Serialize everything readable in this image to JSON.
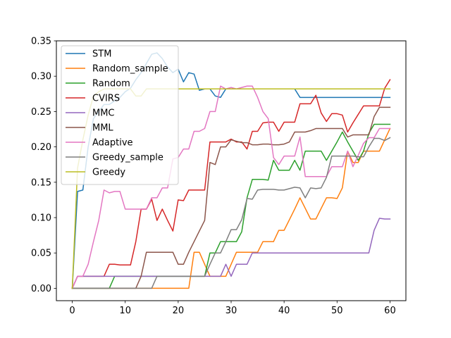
{
  "chart_data": {
    "type": "line",
    "title": "",
    "xlabel": "",
    "ylabel": "",
    "xlim": [
      -3,
      63
    ],
    "ylim": [
      -0.0175,
      0.35
    ],
    "xticks": [
      0,
      10,
      20,
      30,
      40,
      50,
      60
    ],
    "yticks": [
      0.0,
      0.05,
      0.1,
      0.15,
      0.2,
      0.25,
      0.3,
      0.35
    ],
    "xtick_labels": [
      "0",
      "10",
      "20",
      "30",
      "40",
      "50",
      "60"
    ],
    "ytick_labels": [
      "0.00",
      "0.05",
      "0.10",
      "0.15",
      "0.20",
      "0.25",
      "0.30",
      "0.35"
    ],
    "grid": false,
    "legend_position": "upper-left",
    "x": [
      0,
      1,
      2,
      3,
      4,
      5,
      6,
      7,
      8,
      9,
      10,
      11,
      12,
      13,
      14,
      15,
      16,
      17,
      18,
      19,
      20,
      21,
      22,
      23,
      24,
      25,
      26,
      27,
      28,
      29,
      30,
      31,
      32,
      33,
      34,
      35,
      36,
      37,
      38,
      39,
      40,
      41,
      42,
      43,
      44,
      45,
      46,
      47,
      48,
      49,
      50,
      51,
      52,
      53,
      54,
      55,
      56,
      57,
      58,
      59,
      60
    ],
    "series": [
      {
        "name": "STM",
        "color": "#1f77b4",
        "values": [
          0,
          0.137,
          0.139,
          0.2,
          0.24,
          0.25,
          0.26,
          0.26,
          0.265,
          0.27,
          0.278,
          0.283,
          0.295,
          0.305,
          0.318,
          0.331,
          0.333,
          0.325,
          0.313,
          0.305,
          0.31,
          0.292,
          0.305,
          0.303,
          0.28,
          0.282,
          0.282,
          0.272,
          0.27,
          0.282,
          0.282,
          0.282,
          0.282,
          0.282,
          0.282,
          0.282,
          0.282,
          0.282,
          0.282,
          0.282,
          0.282,
          0.282,
          0.282,
          0.27,
          0.27,
          0.27,
          0.27,
          0.27,
          0.27,
          0.27,
          0.27,
          0.27,
          0.27,
          0.27,
          0.27,
          0.27,
          0.27,
          0.27,
          0.27,
          0.27,
          0.27
        ]
      },
      {
        "name": "Random_sample",
        "color": "#ff7f0e",
        "values": [
          0,
          0,
          0,
          0,
          0,
          0,
          0,
          0,
          0,
          0,
          0,
          0,
          0,
          0,
          0,
          0,
          0,
          0,
          0,
          0,
          0,
          0,
          0,
          0.051,
          0.051,
          0.034,
          0.017,
          0.017,
          0.017,
          0.017,
          0.034,
          0.051,
          0.051,
          0.051,
          0.051,
          0.051,
          0.066,
          0.066,
          0.066,
          0.082,
          0.082,
          0.097,
          0.112,
          0.128,
          0.113,
          0.098,
          0.098,
          0.113,
          0.128,
          0.128,
          0.127,
          0.142,
          0.194,
          0.178,
          0.178,
          0.194,
          0.194,
          0.194,
          0.194,
          0.21,
          0.226
        ]
      },
      {
        "name": "Random",
        "color": "#2ca02c",
        "values": [
          0,
          0,
          0,
          0,
          0,
          0,
          0,
          0,
          0.017,
          0.017,
          0.017,
          0.017,
          0.017,
          0.017,
          0.017,
          0.017,
          0.017,
          0.017,
          0.017,
          0.017,
          0.017,
          0.017,
          0.017,
          0.017,
          0.017,
          0.017,
          0.05,
          0.05,
          0.066,
          0.066,
          0.066,
          0.066,
          0.08,
          0.128,
          0.154,
          0.154,
          0.154,
          0.153,
          0.181,
          0.167,
          0.167,
          0.167,
          0.181,
          0.167,
          0.194,
          0.194,
          0.194,
          0.194,
          0.181,
          0.194,
          0.207,
          0.221,
          0.207,
          0.194,
          0.181,
          0.194,
          0.219,
          0.232,
          0.232,
          0.232,
          0.232
        ]
      },
      {
        "name": "CVIRS",
        "color": "#d62728",
        "values": [
          0,
          0.017,
          0.017,
          0.017,
          0.017,
          0.017,
          0.017,
          0.034,
          0.034,
          0.033,
          0.033,
          0.033,
          0.066,
          0.112,
          0.112,
          0.126,
          0.096,
          0.112,
          0.096,
          0.081,
          0.125,
          0.124,
          0.139,
          0.139,
          0.139,
          0.139,
          0.207,
          0.207,
          0.207,
          0.207,
          0.211,
          0.207,
          0.207,
          0.197,
          0.222,
          0.222,
          0.234,
          0.235,
          0.235,
          0.222,
          0.235,
          0.235,
          0.235,
          0.261,
          0.261,
          0.261,
          0.273,
          0.248,
          0.236,
          0.247,
          0.247,
          0.245,
          0.221,
          0.234,
          0.246,
          0.258,
          0.258,
          0.258,
          0.258,
          0.283,
          0.295
        ]
      },
      {
        "name": "MMC",
        "color": "#9467bd",
        "values": [
          0,
          0.017,
          0.017,
          0.017,
          0.017,
          0.017,
          0.017,
          0.017,
          0.017,
          0.017,
          0.017,
          0.017,
          0.017,
          0.017,
          0.017,
          0.017,
          0.017,
          0.017,
          0.017,
          0.017,
          0.017,
          0.017,
          0.017,
          0.017,
          0.017,
          0.017,
          0.017,
          0.017,
          0.017,
          0.034,
          0.017,
          0.034,
          0.034,
          0.034,
          0.05,
          0.05,
          0.05,
          0.05,
          0.05,
          0.05,
          0.05,
          0.05,
          0.05,
          0.05,
          0.05,
          0.05,
          0.05,
          0.05,
          0.05,
          0.05,
          0.05,
          0.05,
          0.05,
          0.05,
          0.05,
          0.05,
          0.05,
          0.082,
          0.099,
          0.098,
          0.098
        ]
      },
      {
        "name": "MML",
        "color": "#8c564b",
        "values": [
          0,
          0,
          0,
          0,
          0,
          0,
          0,
          0,
          0,
          0,
          0,
          0,
          0,
          0.017,
          0.051,
          0.051,
          0.051,
          0.051,
          0.051,
          0.051,
          0.034,
          0.034,
          0.051,
          0.066,
          0.081,
          0.096,
          0.178,
          0.175,
          0.2,
          0.2,
          0.21,
          0.208,
          0.206,
          0.206,
          0.203,
          0.203,
          0.204,
          0.204,
          0.203,
          0.203,
          0.204,
          0.207,
          0.221,
          0.221,
          0.221,
          0.223,
          0.226,
          0.226,
          0.226,
          0.226,
          0.226,
          0.226,
          0.214,
          0.217,
          0.217,
          0.217,
          0.217,
          0.243,
          0.256,
          0.256,
          0.256
        ]
      },
      {
        "name": "Adaptive",
        "color": "#e377c2",
        "values": [
          0,
          0.017,
          0.017,
          0.034,
          0.066,
          0.096,
          0.139,
          0.135,
          0.137,
          0.137,
          0.112,
          0.112,
          0.112,
          0.112,
          0.112,
          0.128,
          0.128,
          0.142,
          0.142,
          0.183,
          0.185,
          0.197,
          0.197,
          0.222,
          0.222,
          0.226,
          0.25,
          0.25,
          0.286,
          0.282,
          0.284,
          0.282,
          0.284,
          0.286,
          0.286,
          0.27,
          0.25,
          0.24,
          0.185,
          0.175,
          0.187,
          0.187,
          0.187,
          0.214,
          0.158,
          0.158,
          0.158,
          0.158,
          0.158,
          0.172,
          0.172,
          0.172,
          0.194,
          0.172,
          0.188,
          0.205,
          0.213,
          0.213,
          0.226,
          0.226,
          0.226
        ]
      },
      {
        "name": "Greedy_sample",
        "color": "#7f7f7f",
        "values": [
          0,
          0,
          0,
          0,
          0,
          0,
          0,
          0,
          0,
          0,
          0,
          0,
          0,
          0,
          0,
          0,
          0.017,
          0.017,
          0.017,
          0.017,
          0.017,
          0.017,
          0.017,
          0.017,
          0.017,
          0.017,
          0.034,
          0.05,
          0.05,
          0.066,
          0.083,
          0.083,
          0.097,
          0.127,
          0.126,
          0.139,
          0.14,
          0.14,
          0.14,
          0.139,
          0.139,
          0.141,
          0.143,
          0.142,
          0.128,
          0.142,
          0.141,
          0.142,
          0.157,
          0.187,
          0.187,
          0.187,
          0.187,
          0.187,
          0.186,
          0.186,
          0.2,
          0.212,
          0.212,
          0.209,
          0.213
        ]
      },
      {
        "name": "Greedy",
        "color": "#bcbd22",
        "values": [
          0,
          0.17,
          0.21,
          0.245,
          0.272,
          0.278,
          0.282,
          0.282,
          0.282,
          0.282,
          0.282,
          0.282,
          0.272,
          0.272,
          0.282,
          0.282,
          0.282,
          0.282,
          0.282,
          0.282,
          0.282,
          0.282,
          0.282,
          0.282,
          0.282,
          0.282,
          0.282,
          0.282,
          0.282,
          0.282,
          0.282,
          0.282,
          0.282,
          0.282,
          0.282,
          0.282,
          0.282,
          0.282,
          0.282,
          0.282,
          0.282,
          0.282,
          0.282,
          0.282,
          0.282,
          0.282,
          0.282,
          0.282,
          0.282,
          0.282,
          0.282,
          0.282,
          0.282,
          0.282,
          0.282,
          0.282,
          0.282,
          0.282,
          0.282,
          0.282,
          0.282
        ]
      }
    ]
  }
}
